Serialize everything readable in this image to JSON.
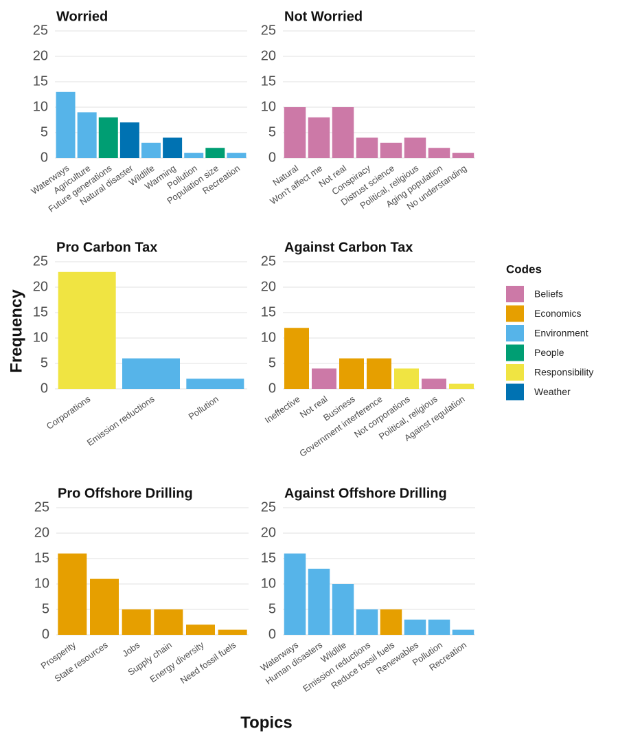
{
  "chart_data": [
    {
      "type": "bar",
      "title": "Worried",
      "categories": [
        "Waterways",
        "Agriculture",
        "Future generations",
        "Natural disaster",
        "Wildlife",
        "Warming",
        "Pollution",
        "Population size",
        "Recreation"
      ],
      "values": [
        13,
        9,
        8,
        7,
        3,
        4,
        1,
        2,
        1
      ],
      "colors": [
        "#56B4E9",
        "#56B4E9",
        "#009E73",
        "#0072B2",
        "#56B4E9",
        "#0072B2",
        "#56B4E9",
        "#009E73",
        "#56B4E9"
      ],
      "ylim": [
        0,
        25
      ],
      "yticks": [
        0,
        5,
        10,
        15,
        20,
        25
      ],
      "grid": true
    },
    {
      "type": "bar",
      "title": "Not Worried",
      "categories": [
        "Natural",
        "Won't affect me",
        "Not real",
        "Conspiracy",
        "Distrust science",
        "Political, religious",
        "Aging population",
        "No understanding"
      ],
      "values": [
        10,
        8,
        10,
        4,
        3,
        4,
        2,
        1
      ],
      "colors": [
        "#CC79A7",
        "#CC79A7",
        "#CC79A7",
        "#CC79A7",
        "#CC79A7",
        "#CC79A7",
        "#CC79A7",
        "#CC79A7"
      ],
      "ylim": [
        0,
        25
      ],
      "yticks": [
        0,
        5,
        10,
        15,
        20,
        25
      ],
      "grid": true
    },
    {
      "type": "bar",
      "title": "Pro Carbon Tax",
      "categories": [
        "Corporations",
        "Emission reductions",
        "Pollution"
      ],
      "values": [
        23,
        6,
        2
      ],
      "colors": [
        "#F0E442",
        "#56B4E9",
        "#56B4E9"
      ],
      "ylim": [
        0,
        25
      ],
      "yticks": [
        0,
        5,
        10,
        15,
        20,
        25
      ],
      "grid": true
    },
    {
      "type": "bar",
      "title": "Against Carbon Tax",
      "categories": [
        "Ineffective",
        "Not real",
        "Business",
        "Government interference",
        "Not corporations",
        "Political, religious",
        "Against regulation"
      ],
      "values": [
        12,
        4,
        6,
        6,
        4,
        2,
        1
      ],
      "colors": [
        "#E69F00",
        "#CC79A7",
        "#E69F00",
        "#E69F00",
        "#F0E442",
        "#CC79A7",
        "#F0E442"
      ],
      "ylim": [
        0,
        25
      ],
      "yticks": [
        0,
        5,
        10,
        15,
        20,
        25
      ],
      "grid": true
    },
    {
      "type": "bar",
      "title": "Pro Offshore Drilling",
      "categories": [
        "Prosperity",
        "State resources",
        "Jobs",
        "Supply chain",
        "Energy diversity",
        "Need fossil fuels"
      ],
      "values": [
        16,
        11,
        5,
        5,
        2,
        1
      ],
      "colors": [
        "#E69F00",
        "#E69F00",
        "#E69F00",
        "#E69F00",
        "#E69F00",
        "#E69F00"
      ],
      "ylim": [
        0,
        25
      ],
      "yticks": [
        0,
        5,
        10,
        15,
        20,
        25
      ],
      "grid": true
    },
    {
      "type": "bar",
      "title": "Against Offshore Drilling",
      "categories": [
        "Waterways",
        "Human disasters",
        "Wildlife",
        "Emission reductions",
        "Reduce fossil fuels",
        "Renewables",
        "Pollution",
        "Recreation"
      ],
      "values": [
        16,
        13,
        10,
        5,
        5,
        3,
        3,
        1
      ],
      "colors": [
        "#56B4E9",
        "#56B4E9",
        "#56B4E9",
        "#56B4E9",
        "#E69F00",
        "#56B4E9",
        "#56B4E9",
        "#56B4E9"
      ],
      "ylim": [
        0,
        25
      ],
      "yticks": [
        0,
        5,
        10,
        15,
        20,
        25
      ],
      "grid": true
    }
  ],
  "y_label": "Frequency",
  "x_label": "Topics",
  "legend": {
    "title": "Codes",
    "entries": [
      {
        "name": "Beliefs",
        "color": "#CC79A7"
      },
      {
        "name": "Economics",
        "color": "#E69F00"
      },
      {
        "name": "Environment",
        "color": "#56B4E9"
      },
      {
        "name": "People",
        "color": "#009E73"
      },
      {
        "name": "Responsibility",
        "color": "#F0E442"
      },
      {
        "name": "Weather",
        "color": "#0072B2"
      }
    ]
  }
}
